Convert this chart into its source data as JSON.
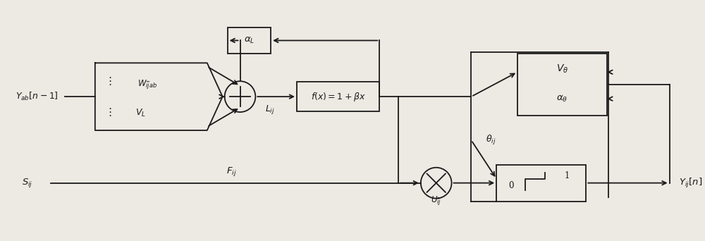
{
  "bg_color": "#ede9e3",
  "line_color": "#1a1a1a",
  "box_color": "#ede9e3",
  "fig_width": 10.0,
  "fig_height": 3.42,
  "labels": {
    "Y_ab": "$Y_{ab}[n-1]$",
    "W_ijab": "$W_{\\bar{i}\\bar{j}ab}$",
    "V_L": "$V_L$",
    "alpha_L": "$\\alpha_L$",
    "L_ij": "$L_{ij}$",
    "f_box": "$f(x)=1+\\beta x$",
    "S_ij": "$S_{ij}$",
    "F_ij": "$F_{ij}$",
    "V_theta": "$V_{\\theta}$",
    "alpha_theta": "$\\alpha_{\\theta}$",
    "theta_ij": "$\\theta_{ij}$",
    "U_ij": "$U_{\\bar{i}\\bar{j}}$",
    "Y_ij_n": "$Y_{ij}[n]$"
  }
}
